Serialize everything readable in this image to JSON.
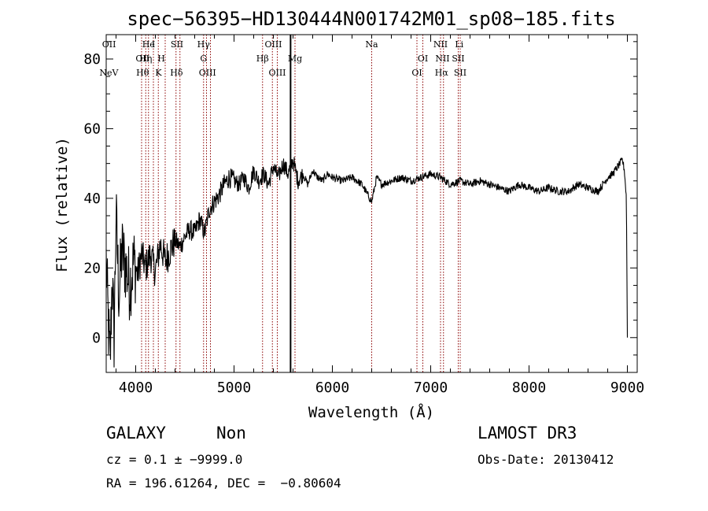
{
  "chart_data": {
    "type": "line",
    "title": "spec−56395−HD130444N001742M01_sp08−185.fits",
    "xlabel": "Wavelength (Å)",
    "ylabel": "Flux (relative)",
    "xlim": [
      3700,
      9100
    ],
    "ylim": [
      -10,
      87
    ],
    "x_ticks": [
      4000,
      5000,
      6000,
      7000,
      8000,
      9000
    ],
    "x_tick_labels": [
      "4000",
      "5000",
      "6000",
      "7000",
      "8000",
      "9000"
    ],
    "y_ticks": [
      0,
      20,
      40,
      60,
      80
    ],
    "y_tick_labels": [
      "0",
      "20",
      "40",
      "60",
      "80"
    ],
    "grid": false,
    "series": [
      {
        "name": "flux",
        "color": "#000000",
        "x": [
          3700,
          3720,
          3740,
          3760,
          3780,
          3800,
          3830,
          3860,
          3900,
          3940,
          3980,
          4020,
          4060,
          4100,
          4150,
          4200,
          4250,
          4300,
          4350,
          4400,
          4450,
          4500,
          4550,
          4600,
          4650,
          4700,
          4750,
          4800,
          4850,
          4900,
          4950,
          5000,
          5050,
          5100,
          5150,
          5200,
          5250,
          5300,
          5350,
          5400,
          5450,
          5500,
          5550,
          5600,
          5650,
          5700,
          5750,
          5800,
          5850,
          5900,
          5950,
          6000,
          6100,
          6200,
          6300,
          6400,
          6450,
          6500,
          6600,
          6700,
          6800,
          6900,
          7000,
          7100,
          7200,
          7300,
          7400,
          7500,
          7600,
          7700,
          7800,
          7900,
          8000,
          8100,
          8200,
          8300,
          8400,
          8500,
          8600,
          8700,
          8800,
          8850,
          8900,
          8950,
          8970,
          8990,
          9000
        ],
        "values": [
          22,
          5,
          -8,
          18,
          0,
          35,
          12,
          25,
          20,
          15,
          22,
          18,
          24,
          20,
          24,
          19,
          27,
          22,
          25,
          28,
          26,
          29,
          31,
          30,
          34,
          30,
          37,
          39,
          41,
          44,
          46,
          45,
          44,
          46,
          43,
          48,
          45,
          47,
          44,
          49,
          46,
          50,
          47,
          51,
          45,
          47,
          44,
          48,
          46,
          45,
          47,
          46,
          45,
          46,
          44,
          39,
          46,
          44,
          45,
          46,
          45,
          46,
          47,
          46,
          44,
          45,
          44,
          45,
          44,
          43,
          42,
          44,
          43,
          42,
          43,
          42,
          42,
          44,
          43,
          42,
          46,
          47,
          49,
          51,
          48,
          40,
          0
        ]
      }
    ],
    "emission_lines": [
      {
        "label": "NeV",
        "wavelength": 3727,
        "row": 3
      },
      {
        "label": "OII",
        "wavelength": 3729,
        "row": 1
      },
      {
        "label": "OII",
        "wavelength": 4070,
        "row": 2
      },
      {
        "label": "Hθ",
        "wavelength": 4070,
        "row": 3
      },
      {
        "label": "Hη",
        "wavelength": 4102,
        "row": 2
      },
      {
        "label": "He",
        "wavelength": 4130,
        "row": 1
      },
      {
        "label": "I",
        "wavelength": 4180,
        "row": 1
      },
      {
        "label": "K",
        "wavelength": 4232,
        "row": 3
      },
      {
        "label": "H",
        "wavelength": 4260,
        "row": 2
      },
      {
        "label": "SII",
        "wavelength": 4420,
        "row": 1
      },
      {
        "label": "Hδ",
        "wavelength": 4415,
        "row": 3
      },
      {
        "label": "Hγ",
        "wavelength": 4690,
        "row": 1
      },
      {
        "label": "G",
        "wavelength": 4690,
        "row": 2
      },
      {
        "label": "OIII",
        "wavelength": 4730,
        "row": 3
      },
      {
        "label": "OIII",
        "wavelength": 5400,
        "row": 1
      },
      {
        "label": "Hβ",
        "wavelength": 5290,
        "row": 2
      },
      {
        "label": "OIII",
        "wavelength": 5440,
        "row": 3
      },
      {
        "label": "Mg",
        "wavelength": 5620,
        "row": 2
      },
      {
        "label": "Na",
        "wavelength": 6400,
        "row": 1
      },
      {
        "label": "OI",
        "wavelength": 6920,
        "row": 2
      },
      {
        "label": "OI",
        "wavelength": 6860,
        "row": 3
      },
      {
        "label": "NII",
        "wavelength": 7100,
        "row": 1
      },
      {
        "label": "NII",
        "wavelength": 7120,
        "row": 2
      },
      {
        "label": "Hα",
        "wavelength": 7110,
        "row": 3
      },
      {
        "label": "SII",
        "wavelength": 7280,
        "row": 2
      },
      {
        "label": "SII",
        "wavelength": 7300,
        "row": 3
      },
      {
        "label": "Li",
        "wavelength": 7290,
        "row": 1
      }
    ],
    "emission_line_wavelengths": [
      4060,
      4102,
      4130,
      4180,
      4230,
      4300,
      4410,
      4450,
      4690,
      4720,
      4760,
      5290,
      5390,
      5440,
      5620,
      6400,
      6860,
      6920,
      7100,
      7130,
      7280,
      7300
    ],
    "solid_marker_wavelength": 5575,
    "line_color": "#8b0000"
  },
  "info": {
    "object_class": "GALAXY",
    "subclass": "Non",
    "survey": "LAMOST DR3",
    "redshift": "cz = 0.1 ± −9999.0",
    "obs_date": "Obs-Date: 20130412",
    "coords": "RA = 196.61264, DEC =  −0.80604"
  }
}
